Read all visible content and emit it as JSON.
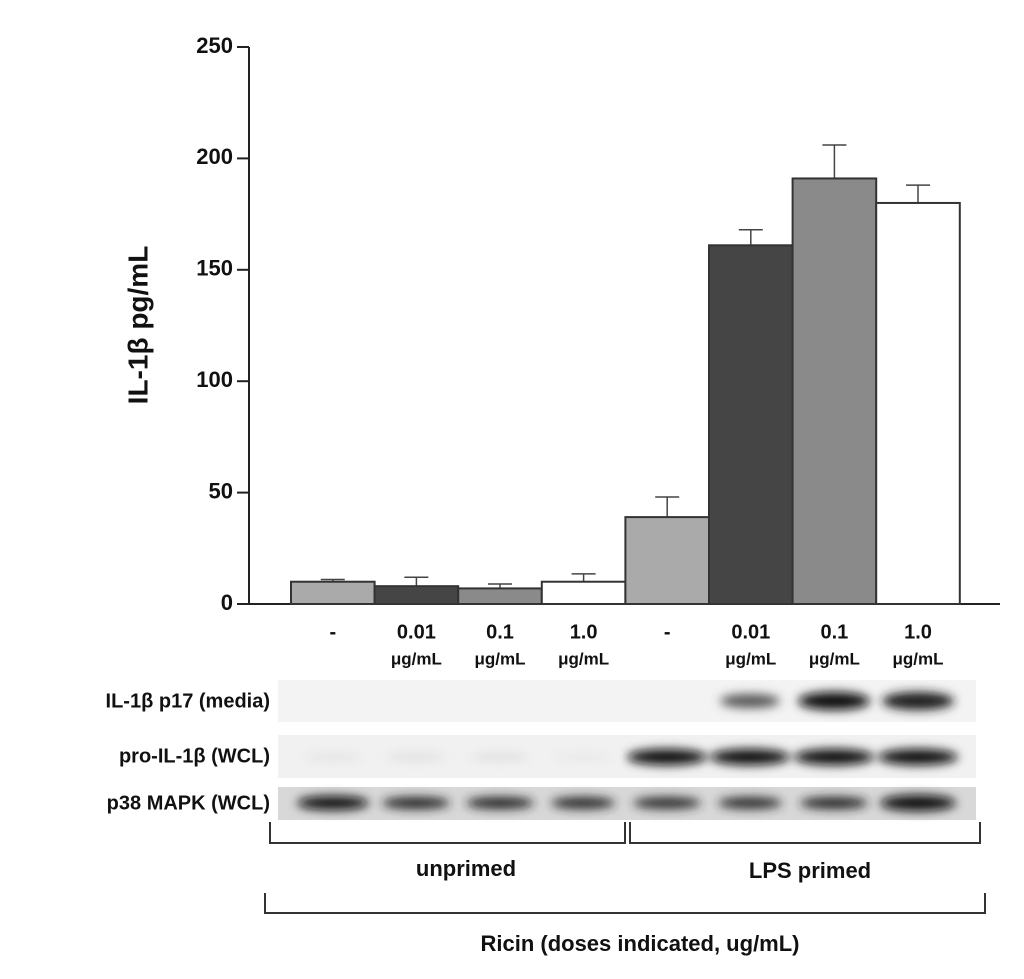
{
  "chart_data": {
    "type": "bar",
    "y_label": "IL-1β pg/mL",
    "categories": [
      "-",
      "0.01",
      "0.1",
      "1.0",
      "-",
      "0.01",
      "0.1",
      "1.0"
    ],
    "category_units": [
      null,
      "μg/mL",
      "μg/mL",
      "μg/mL",
      null,
      "μg/mL",
      "μg/mL",
      "μg/mL"
    ],
    "values": [
      10,
      8,
      7,
      10,
      39,
      161,
      191,
      180
    ],
    "errors": [
      1,
      4,
      2,
      3.5,
      9,
      7,
      15,
      8
    ],
    "colors": [
      "#aaaaaa",
      "#454545",
      "#8a8a8a",
      "#ffffff",
      "#aaaaaa",
      "#454545",
      "#8a8a8a",
      "#ffffff"
    ],
    "ylim": [
      0,
      250
    ],
    "yticks": [
      0,
      50,
      100,
      150,
      200,
      250
    ],
    "group_labels": [
      "unprimed",
      "LPS primed"
    ],
    "x_label": "Ricin (doses indicated, ug/mL)"
  },
  "blot": {
    "rows": [
      "IL-1β p17 (media)",
      "pro-IL-1β (WCL)",
      "p38 MAPK (WCL)"
    ]
  }
}
